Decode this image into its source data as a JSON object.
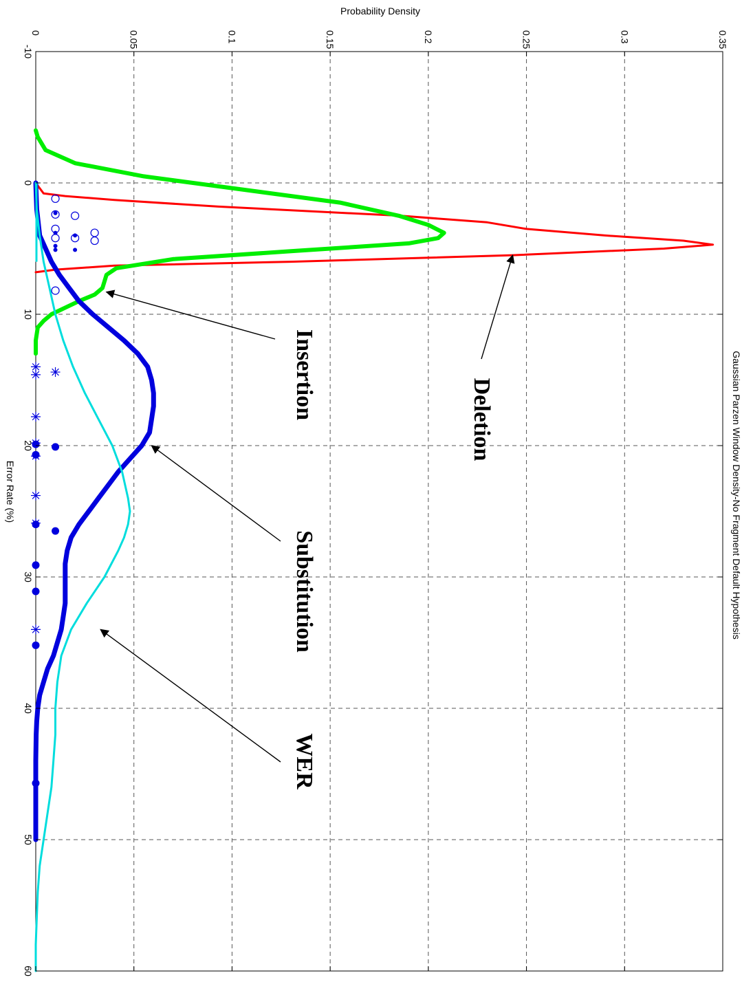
{
  "chart_data": {
    "type": "line",
    "orientation": "rotated-90-clockwise",
    "title": "Gaussian Parzen Window Density-No Fragment Default Hypothesis",
    "xlabel": "Error Rate (%)",
    "ylabel": "Probability Density",
    "xlim": [
      -10,
      60
    ],
    "ylim": [
      0,
      0.35
    ],
    "xticks": [
      "-10",
      "0",
      "10",
      "20",
      "30",
      "40",
      "50",
      "60"
    ],
    "yticks": [
      "0",
      "0.05",
      "0.1",
      "0.15",
      "0.2",
      "0.25",
      "0.3",
      "0.35"
    ],
    "grid": true,
    "series": [
      {
        "name": "Deletion",
        "color": "#ff0000",
        "x": [
          0,
          0.8,
          1.0,
          1.3,
          1.8,
          2.5,
          3.0,
          3.5,
          4.0,
          4.4,
          4.7,
          5.0,
          5.5,
          6.0,
          6.3,
          6.6,
          6.8
        ],
        "y": [
          0,
          0.004,
          0.015,
          0.04,
          0.093,
          0.186,
          0.23,
          0.25,
          0.29,
          0.33,
          0.345,
          0.32,
          0.243,
          0.13,
          0.04,
          0.01,
          0
        ]
      },
      {
        "name": "Insertion",
        "color": "#00ee00",
        "x": [
          -4,
          -3.5,
          -2.5,
          -1.5,
          -0.5,
          0.5,
          1.5,
          2.5,
          3.2,
          3.8,
          4.2,
          4.6,
          5.2,
          5.8,
          6.5,
          7.0,
          7.5,
          8.0,
          8.5,
          9.0,
          9.5,
          10.0,
          10.5,
          11.0,
          12.0,
          13.0
        ],
        "y": [
          0,
          0.001,
          0.005,
          0.02,
          0.055,
          0.105,
          0.155,
          0.185,
          0.2,
          0.208,
          0.205,
          0.19,
          0.13,
          0.07,
          0.041,
          0.036,
          0.035,
          0.034,
          0.03,
          0.022,
          0.015,
          0.008,
          0.004,
          0.001,
          0,
          0
        ]
      },
      {
        "name": "Substitution",
        "color": "#0000dd",
        "x": [
          0,
          2,
          4,
          5,
          6,
          7,
          8,
          9,
          10,
          11,
          12,
          13,
          14,
          15,
          16,
          17,
          18,
          19,
          20,
          21,
          22,
          23,
          24,
          25,
          26,
          27,
          28,
          29,
          30,
          31,
          32,
          33,
          34,
          35,
          36,
          37,
          38,
          39,
          40,
          41,
          42,
          44,
          46,
          48,
          50
        ],
        "y": [
          0,
          0.0005,
          0.002,
          0.005,
          0.008,
          0.012,
          0.017,
          0.022,
          0.029,
          0.037,
          0.045,
          0.052,
          0.057,
          0.059,
          0.06,
          0.06,
          0.059,
          0.058,
          0.054,
          0.048,
          0.042,
          0.037,
          0.032,
          0.027,
          0.022,
          0.018,
          0.016,
          0.015,
          0.015,
          0.015,
          0.015,
          0.014,
          0.013,
          0.011,
          0.009,
          0.006,
          0.004,
          0.002,
          0.001,
          0.0005,
          0.0002,
          0,
          0,
          0,
          0
        ]
      },
      {
        "name": "WER",
        "color": "#00dddd",
        "x": [
          0,
          2,
          4,
          6,
          8,
          10,
          12,
          14,
          16,
          18,
          20,
          22,
          24,
          25,
          26,
          27,
          28,
          30,
          32,
          34,
          36,
          38,
          40,
          42,
          44,
          46,
          48,
          50,
          52,
          54,
          56,
          58,
          60
        ],
        "y": [
          0,
          0.0005,
          0.002,
          0.004,
          0.007,
          0.01,
          0.014,
          0.019,
          0.025,
          0.032,
          0.039,
          0.044,
          0.047,
          0.048,
          0.047,
          0.045,
          0.042,
          0.035,
          0.026,
          0.018,
          0.013,
          0.011,
          0.01,
          0.01,
          0.009,
          0.008,
          0.006,
          0.004,
          0.002,
          0.001,
          0.0005,
          0,
          0
        ]
      }
    ],
    "markers": {
      "color": "#0000dd",
      "open_circles": [
        {
          "x": 1.2,
          "y": 0.01
        },
        {
          "x": 2.4,
          "y": 0.01
        },
        {
          "x": 3.5,
          "y": 0.01
        },
        {
          "x": 4.2,
          "y": 0.01
        },
        {
          "x": 2.5,
          "y": 0.02
        },
        {
          "x": 4.2,
          "y": 0.02
        },
        {
          "x": 3.8,
          "y": 0.03
        },
        {
          "x": 4.4,
          "y": 0.03
        },
        {
          "x": 8.2,
          "y": 0.01
        }
      ],
      "small_dots": [
        {
          "x": 2.3,
          "y": 0.01
        },
        {
          "x": 3.8,
          "y": 0.01
        },
        {
          "x": 4.8,
          "y": 0.01
        },
        {
          "x": 5.1,
          "y": 0.01
        },
        {
          "x": 4.0,
          "y": 0.02
        },
        {
          "x": 5.1,
          "y": 0.02
        }
      ],
      "dots": [
        {
          "x": 19.9,
          "y": 0
        },
        {
          "x": 20.7,
          "y": 0
        },
        {
          "x": 26.0,
          "y": 0
        },
        {
          "x": 29.1,
          "y": 0
        },
        {
          "x": 31.1,
          "y": 0
        },
        {
          "x": 35.2,
          "y": 0
        },
        {
          "x": 45.7,
          "y": 0
        },
        {
          "x": 20.1,
          "y": 0.01
        },
        {
          "x": 26.5,
          "y": 0.01
        }
      ],
      "stars": [
        {
          "x": 14.0,
          "y": 0
        },
        {
          "x": 14.6,
          "y": 0
        },
        {
          "x": 17.8,
          "y": 0
        },
        {
          "x": 19.8,
          "y": 0
        },
        {
          "x": 20.8,
          "y": 0
        },
        {
          "x": 23.8,
          "y": 0
        },
        {
          "x": 25.9,
          "y": 0
        },
        {
          "x": 34.0,
          "y": 0
        },
        {
          "x": 14.4,
          "y": 0.01
        }
      ]
    },
    "annotations": [
      {
        "text": "Deletion",
        "point_x": 5.5,
        "point_y": 0.243
      },
      {
        "text": "Insertion",
        "point_x": 8.3,
        "point_y": 0.036
      },
      {
        "text": "Substitution",
        "point_x": 20.0,
        "point_y": 0.059
      },
      {
        "text": "WER",
        "point_x": 34.0,
        "point_y": 0.033
      }
    ]
  }
}
